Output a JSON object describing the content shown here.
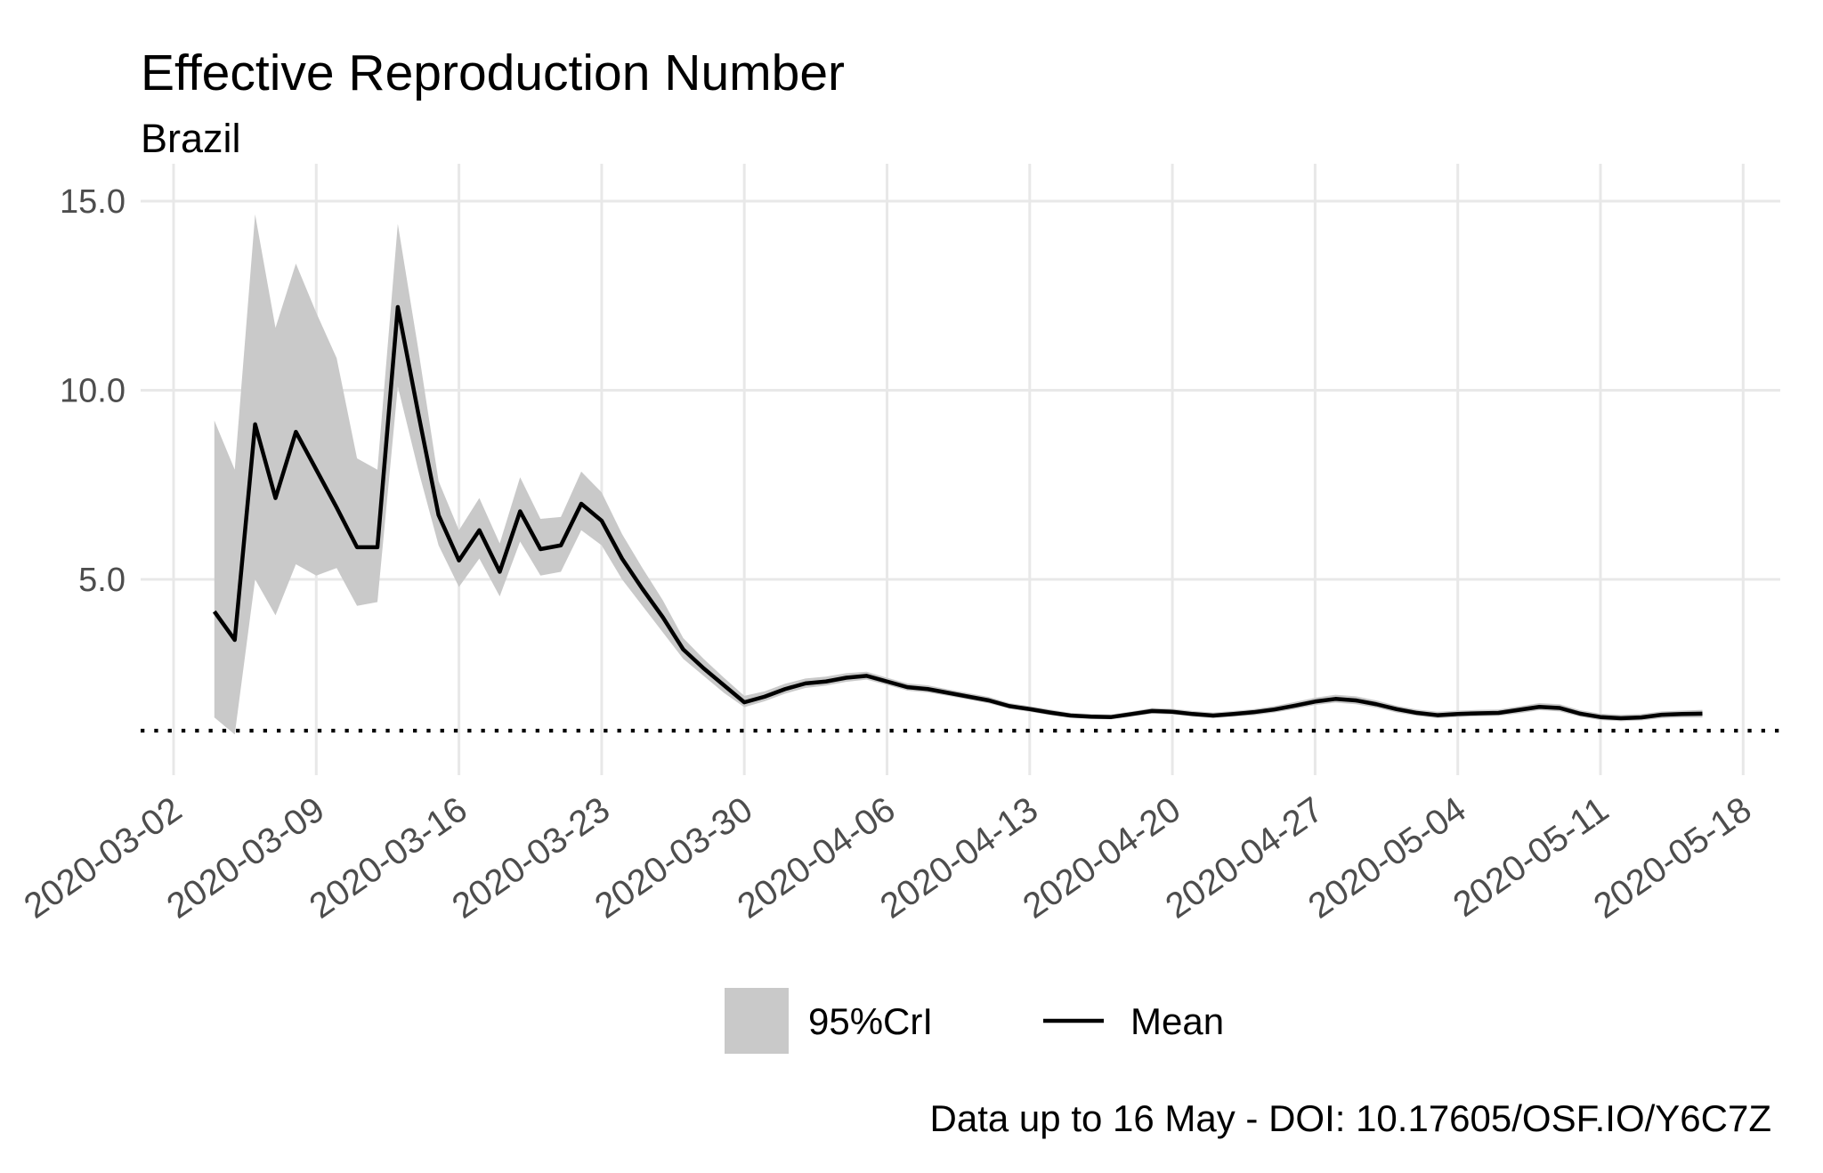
{
  "chart_data": {
    "type": "line",
    "title": "Effective Reproduction Number",
    "subtitle": "Brazil",
    "caption": "Data up to 16 May - DOI: 10.17605/OSF.IO/Y6C7Z",
    "legend": {
      "position": "bottom",
      "items": [
        {
          "label": "95%CrI",
          "swatch": "ribbon"
        },
        {
          "label": "Mean",
          "swatch": "line"
        }
      ]
    },
    "colors": {
      "ribbon": "#c9c9c9",
      "mean_line": "#000000",
      "grid": "#e8e8e8",
      "axis_text": "#4d4d4d",
      "text": "#000000",
      "background": "#ffffff"
    },
    "reference_line": {
      "y": 1.0,
      "style": "dotted"
    },
    "x_axis": {
      "ticks": [
        "2020-03-02",
        "2020-03-09",
        "2020-03-16",
        "2020-03-23",
        "2020-03-30",
        "2020-04-06",
        "2020-04-13",
        "2020-04-20",
        "2020-04-27",
        "2020-05-04",
        "2020-05-11",
        "2020-05-18"
      ]
    },
    "y_axis": {
      "tick_labels": [
        "15.0",
        "10.0",
        "5.0"
      ],
      "tick_values": [
        15,
        10,
        5
      ],
      "ylim": [
        -0.2,
        15.9
      ],
      "grid": true
    },
    "series": {
      "dates": [
        "2020-03-04",
        "2020-03-05",
        "2020-03-06",
        "2020-03-07",
        "2020-03-08",
        "2020-03-09",
        "2020-03-10",
        "2020-03-11",
        "2020-03-12",
        "2020-03-13",
        "2020-03-14",
        "2020-03-15",
        "2020-03-16",
        "2020-03-17",
        "2020-03-18",
        "2020-03-19",
        "2020-03-20",
        "2020-03-21",
        "2020-03-22",
        "2020-03-23",
        "2020-03-24",
        "2020-03-25",
        "2020-03-26",
        "2020-03-27",
        "2020-03-28",
        "2020-03-29",
        "2020-03-30",
        "2020-03-31",
        "2020-04-01",
        "2020-04-02",
        "2020-04-03",
        "2020-04-04",
        "2020-04-05",
        "2020-04-06",
        "2020-04-07",
        "2020-04-08",
        "2020-04-09",
        "2020-04-10",
        "2020-04-11",
        "2020-04-12",
        "2020-04-13",
        "2020-04-14",
        "2020-04-15",
        "2020-04-16",
        "2020-04-17",
        "2020-04-18",
        "2020-04-19",
        "2020-04-20",
        "2020-04-21",
        "2020-04-22",
        "2020-04-23",
        "2020-04-24",
        "2020-04-25",
        "2020-04-26",
        "2020-04-27",
        "2020-04-28",
        "2020-04-29",
        "2020-04-30",
        "2020-05-01",
        "2020-05-02",
        "2020-05-03",
        "2020-05-04",
        "2020-05-05",
        "2020-05-06",
        "2020-05-07",
        "2020-05-08",
        "2020-05-09",
        "2020-05-10",
        "2020-05-11",
        "2020-05-12",
        "2020-05-13",
        "2020-05-14",
        "2020-05-15",
        "2020-05-16"
      ],
      "mean": [
        4.15,
        3.4,
        9.1,
        7.15,
        8.9,
        7.9,
        6.9,
        5.85,
        5.85,
        12.2,
        9.4,
        6.7,
        5.5,
        6.3,
        5.2,
        6.8,
        5.8,
        5.9,
        7.0,
        6.55,
        5.55,
        4.75,
        4.0,
        3.15,
        2.65,
        2.2,
        1.75,
        1.9,
        2.1,
        2.25,
        2.3,
        2.4,
        2.45,
        2.3,
        2.15,
        2.1,
        2.0,
        1.9,
        1.8,
        1.65,
        1.57,
        1.48,
        1.4,
        1.37,
        1.36,
        1.44,
        1.52,
        1.5,
        1.44,
        1.4,
        1.44,
        1.49,
        1.56,
        1.66,
        1.77,
        1.84,
        1.8,
        1.7,
        1.57,
        1.47,
        1.41,
        1.44,
        1.46,
        1.47,
        1.55,
        1.63,
        1.6,
        1.45,
        1.36,
        1.33,
        1.35,
        1.42,
        1.44,
        1.45
      ],
      "lower_95cri": [
        1.35,
        0.9,
        5.0,
        4.05,
        5.4,
        5.1,
        5.3,
        4.3,
        4.4,
        10.1,
        7.9,
        5.9,
        4.8,
        5.55,
        4.55,
        6.0,
        5.1,
        5.2,
        6.3,
        5.9,
        5.0,
        4.3,
        3.6,
        2.9,
        2.45,
        2.0,
        1.62,
        1.78,
        1.98,
        2.13,
        2.19,
        2.29,
        2.35,
        2.21,
        2.06,
        2.01,
        1.92,
        1.82,
        1.72,
        1.58,
        1.5,
        1.41,
        1.34,
        1.31,
        1.3,
        1.37,
        1.45,
        1.43,
        1.37,
        1.33,
        1.37,
        1.41,
        1.48,
        1.57,
        1.68,
        1.74,
        1.7,
        1.61,
        1.48,
        1.39,
        1.33,
        1.36,
        1.38,
        1.39,
        1.46,
        1.54,
        1.51,
        1.37,
        1.28,
        1.25,
        1.27,
        1.33,
        1.35,
        1.35
      ],
      "upper_95cri": [
        9.2,
        7.9,
        14.65,
        11.65,
        13.35,
        12.05,
        10.85,
        8.2,
        7.9,
        14.4,
        11.1,
        7.6,
        6.3,
        7.15,
        5.95,
        7.7,
        6.6,
        6.65,
        7.85,
        7.3,
        6.2,
        5.3,
        4.45,
        3.45,
        2.9,
        2.4,
        1.92,
        2.04,
        2.24,
        2.38,
        2.43,
        2.52,
        2.56,
        2.4,
        2.25,
        2.2,
        2.09,
        1.99,
        1.89,
        1.73,
        1.65,
        1.56,
        1.47,
        1.44,
        1.43,
        1.51,
        1.6,
        1.58,
        1.52,
        1.48,
        1.52,
        1.57,
        1.65,
        1.76,
        1.87,
        1.95,
        1.91,
        1.8,
        1.66,
        1.56,
        1.5,
        1.53,
        1.55,
        1.56,
        1.64,
        1.73,
        1.7,
        1.54,
        1.45,
        1.42,
        1.44,
        1.51,
        1.53,
        1.55
      ]
    }
  }
}
